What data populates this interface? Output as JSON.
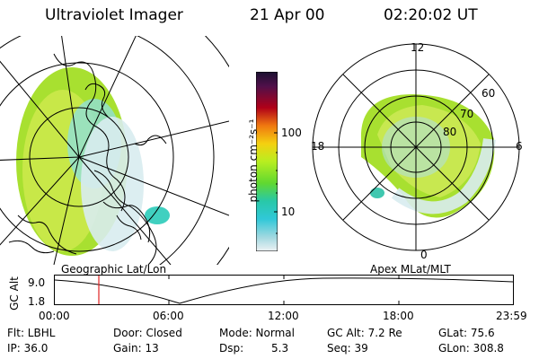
{
  "header": {
    "instrument": "Ultraviolet Imager",
    "date": "21 Apr 00",
    "time": "02:20:02 UT"
  },
  "colorbar": {
    "unit_label": "photon cm⁻²s⁻¹",
    "ticks": [
      "100",
      "10"
    ],
    "colors": [
      "#1a1030",
      "#2a0a3a",
      "#50104a",
      "#7a0a30",
      "#b00018",
      "#d8201a",
      "#f07810",
      "#f4a808",
      "#f4d010",
      "#e8f030",
      "#b8ee20",
      "#80e018",
      "#40d040",
      "#28c8a8",
      "#30c8d8",
      "#a0d8e0",
      "#e0eaf0"
    ]
  },
  "left_map": {
    "caption": "Geographic Lat/Lon"
  },
  "right_polar": {
    "caption": "Apex MLat/MLT",
    "mlt_labels": {
      "top": "12",
      "left": "18",
      "right": "6",
      "bottom": "0"
    },
    "lat_labels": [
      "60",
      "70",
      "80"
    ]
  },
  "altitude_plot": {
    "ylabel": "GC Alt",
    "yticks": [
      "9.0",
      "1.8"
    ],
    "xticks": [
      "00:00",
      "06:00",
      "12:00",
      "18:00",
      "23:59"
    ],
    "marker_time": "02:20"
  },
  "footer": {
    "row1": [
      "Flt: LBHL",
      "Door: Closed",
      "Mode: Normal",
      "GC Alt: 7.2 Re",
      "GLat: 75.6"
    ],
    "row2_a": [
      "IP: 36.0",
      "Gain: 13"
    ],
    "dsp_label": "Dsp:",
    "dsp_value": "5.3",
    "row2_b": [
      "Seq: 39",
      "GLon: 308.8"
    ]
  },
  "colors": {
    "marker": "#e02020",
    "grid": "#000000"
  }
}
